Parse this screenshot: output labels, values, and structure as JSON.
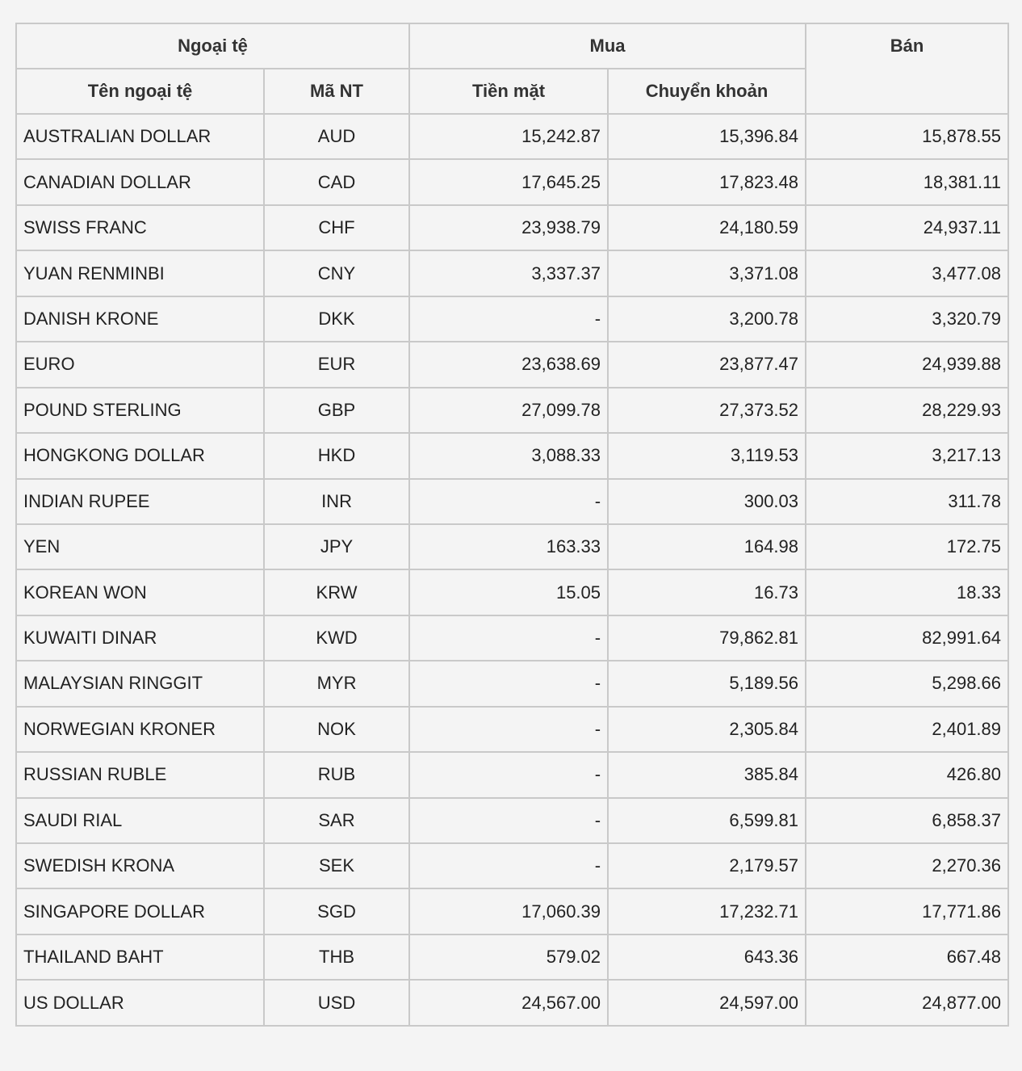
{
  "header": {
    "group_currency": "Ngoại tệ",
    "group_buy": "Mua",
    "sell": "Bán",
    "name": "Tên ngoại tệ",
    "code": "Mã NT",
    "cash": "Tiền mặt",
    "transfer": "Chuyển khoản"
  },
  "rows": [
    {
      "name": "AUSTRALIAN DOLLAR",
      "code": "AUD",
      "cash": "15,242.87",
      "transfer": "15,396.84",
      "sell": "15,878.55"
    },
    {
      "name": "CANADIAN DOLLAR",
      "code": "CAD",
      "cash": "17,645.25",
      "transfer": "17,823.48",
      "sell": "18,381.11"
    },
    {
      "name": "SWISS FRANC",
      "code": "CHF",
      "cash": "23,938.79",
      "transfer": "24,180.59",
      "sell": "24,937.11"
    },
    {
      "name": "YUAN RENMINBI",
      "code": "CNY",
      "cash": "3,337.37",
      "transfer": "3,371.08",
      "sell": "3,477.08"
    },
    {
      "name": "DANISH KRONE",
      "code": "DKK",
      "cash": "-",
      "transfer": "3,200.78",
      "sell": "3,320.79"
    },
    {
      "name": "EURO",
      "code": "EUR",
      "cash": "23,638.69",
      "transfer": "23,877.47",
      "sell": "24,939.88"
    },
    {
      "name": "POUND STERLING",
      "code": "GBP",
      "cash": "27,099.78",
      "transfer": "27,373.52",
      "sell": "28,229.93"
    },
    {
      "name": "HONGKONG DOLLAR",
      "code": "HKD",
      "cash": "3,088.33",
      "transfer": "3,119.53",
      "sell": "3,217.13"
    },
    {
      "name": "INDIAN RUPEE",
      "code": "INR",
      "cash": "-",
      "transfer": "300.03",
      "sell": "311.78"
    },
    {
      "name": "YEN",
      "code": "JPY",
      "cash": "163.33",
      "transfer": "164.98",
      "sell": "172.75"
    },
    {
      "name": "KOREAN WON",
      "code": "KRW",
      "cash": "15.05",
      "transfer": "16.73",
      "sell": "18.33"
    },
    {
      "name": "KUWAITI DINAR",
      "code": "KWD",
      "cash": "-",
      "transfer": "79,862.81",
      "sell": "82,991.64"
    },
    {
      "name": "MALAYSIAN RINGGIT",
      "code": "MYR",
      "cash": "-",
      "transfer": "5,189.56",
      "sell": "5,298.66"
    },
    {
      "name": "NORWEGIAN KRONER",
      "code": "NOK",
      "cash": "-",
      "transfer": "2,305.84",
      "sell": "2,401.89"
    },
    {
      "name": "RUSSIAN RUBLE",
      "code": "RUB",
      "cash": "-",
      "transfer": "385.84",
      "sell": "426.80"
    },
    {
      "name": "SAUDI RIAL",
      "code": "SAR",
      "cash": "-",
      "transfer": "6,599.81",
      "sell": "6,858.37"
    },
    {
      "name": "SWEDISH KRONA",
      "code": "SEK",
      "cash": "-",
      "transfer": "2,179.57",
      "sell": "2,270.36"
    },
    {
      "name": "SINGAPORE DOLLAR",
      "code": "SGD",
      "cash": "17,060.39",
      "transfer": "17,232.71",
      "sell": "17,771.86"
    },
    {
      "name": "THAILAND BAHT",
      "code": "THB",
      "cash": "579.02",
      "transfer": "643.36",
      "sell": "667.48"
    },
    {
      "name": "US DOLLAR",
      "code": "USD",
      "cash": "24,567.00",
      "transfer": "24,597.00",
      "sell": "24,877.00"
    }
  ]
}
